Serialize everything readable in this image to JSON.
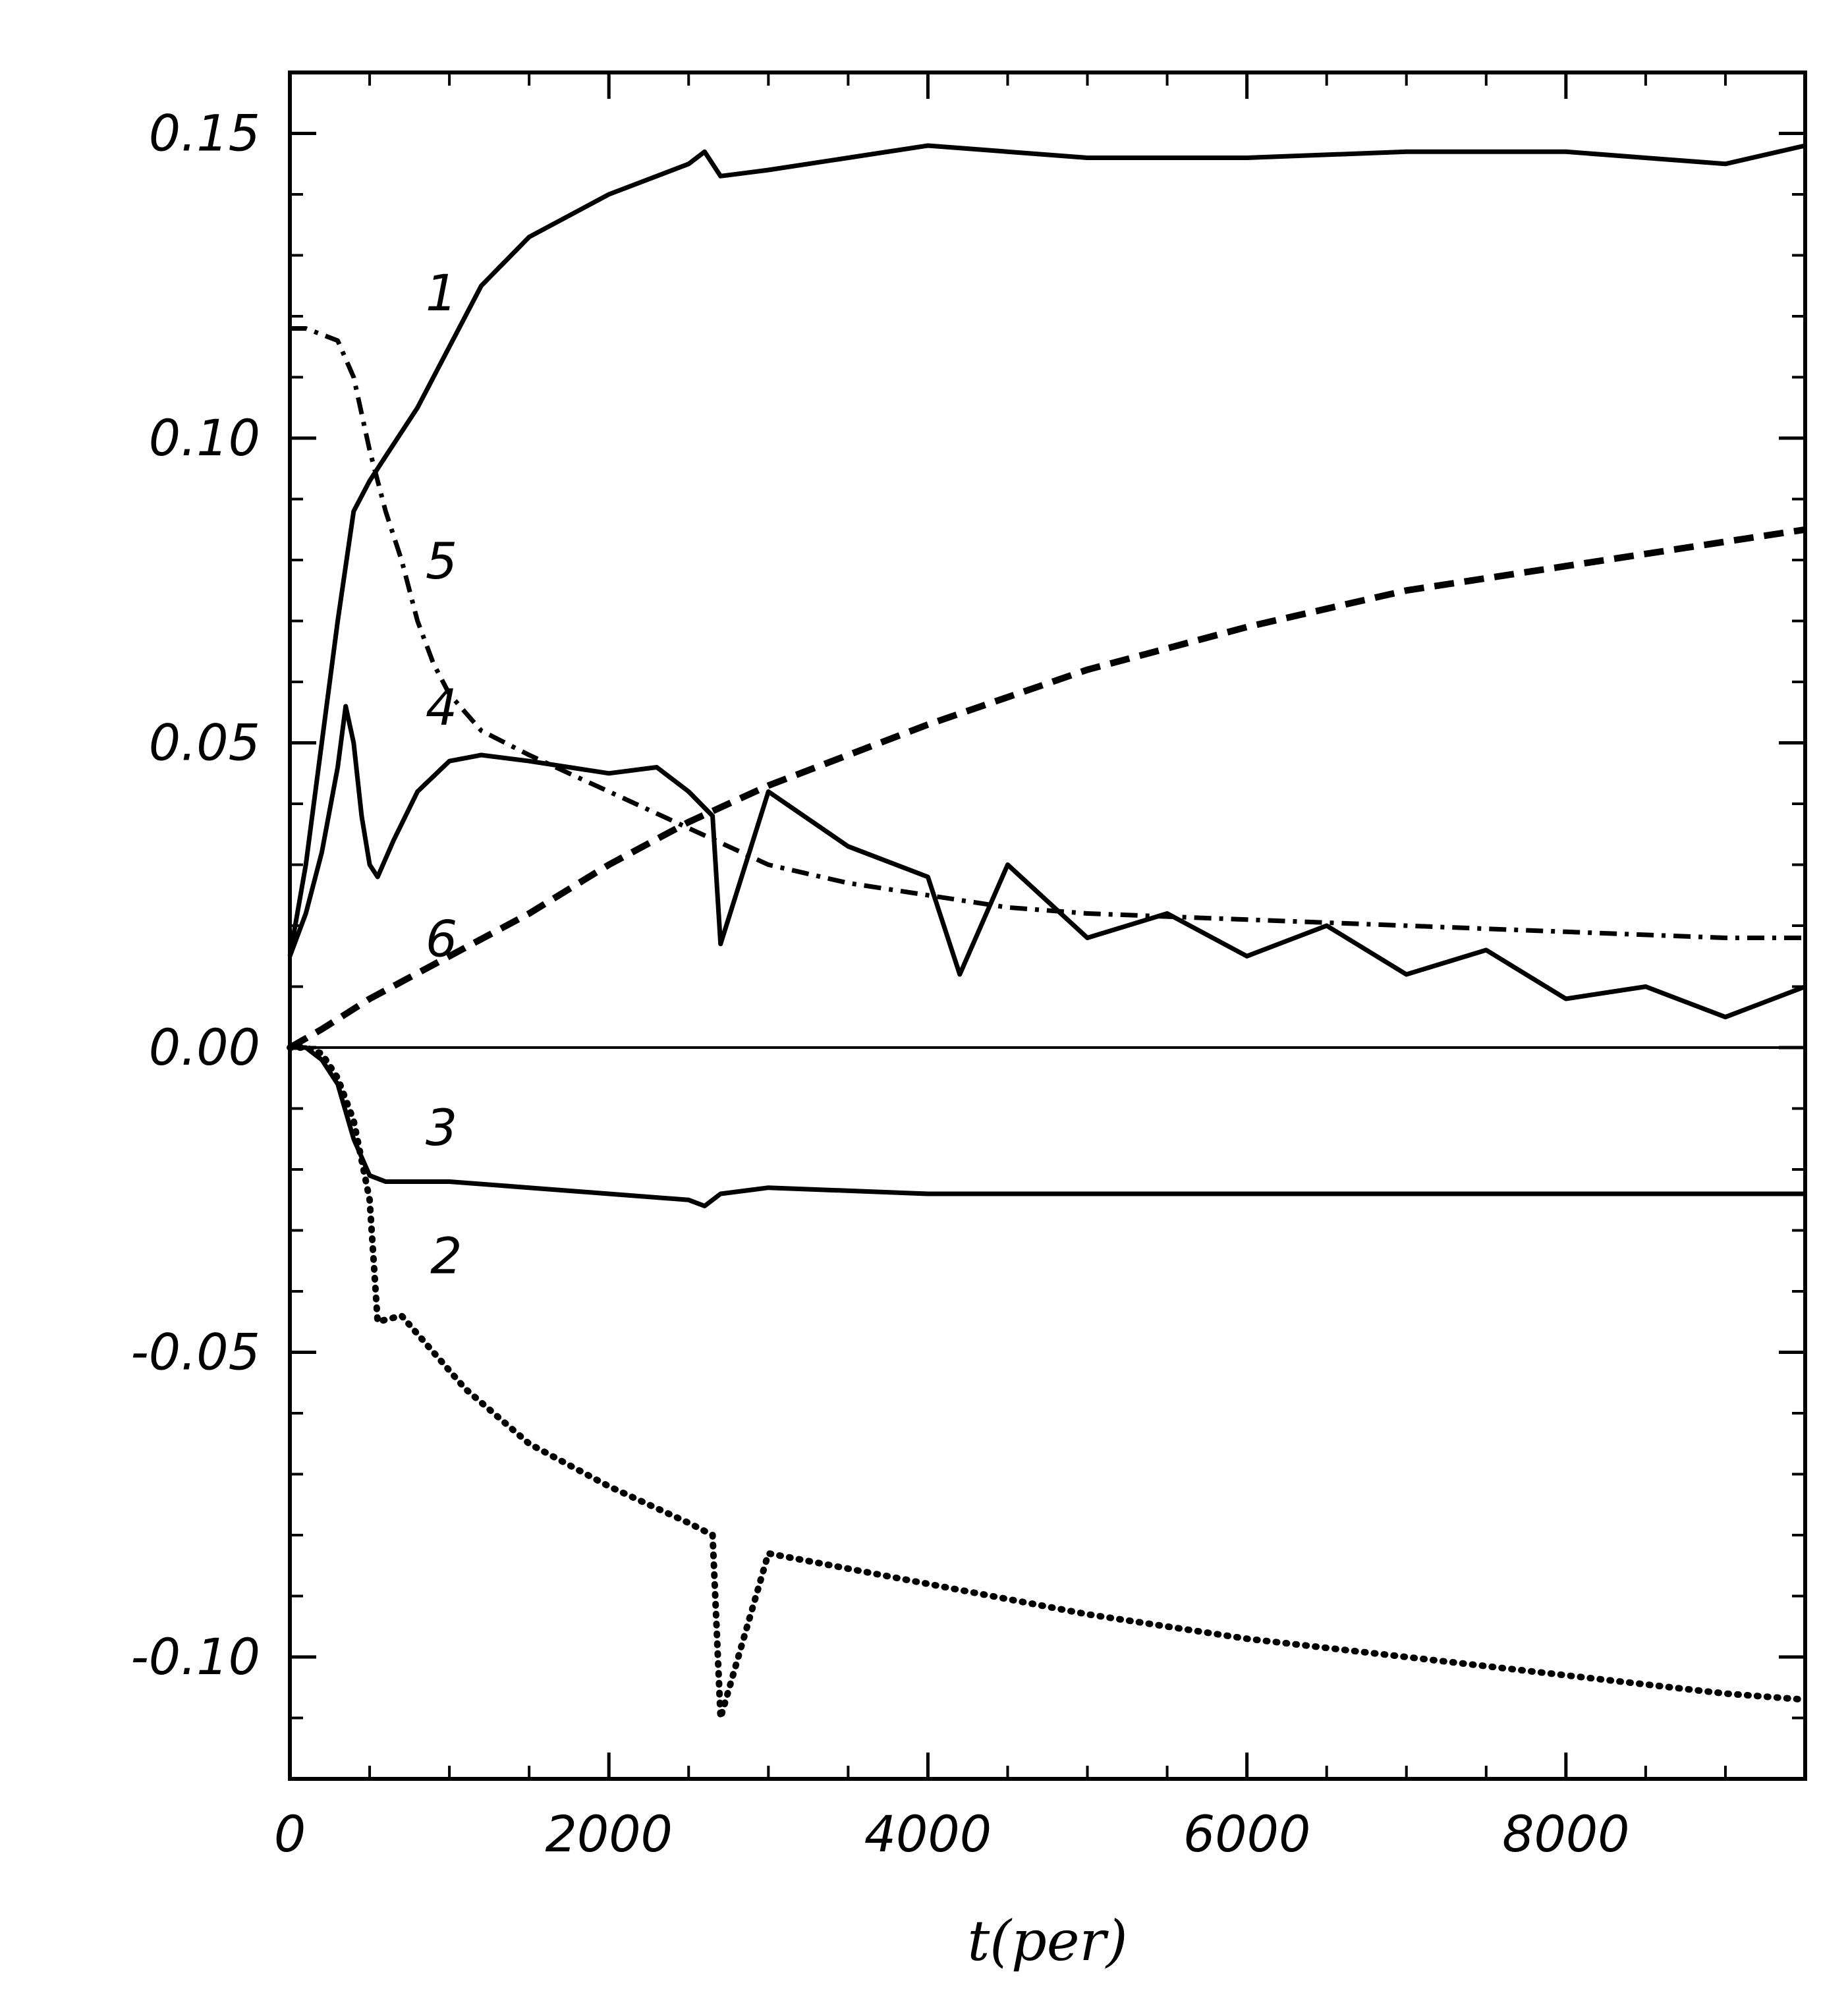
{
  "chart_data": {
    "type": "line",
    "title": "",
    "xlabel": "t(per)",
    "ylabel": "",
    "xlim": [
      0,
      9500
    ],
    "ylim": [
      -0.12,
      0.16
    ],
    "x_ticks": [
      0,
      2000,
      4000,
      6000,
      8000
    ],
    "x_tick_labels": [
      "0",
      "2000",
      "4000",
      "6000",
      "8000"
    ],
    "y_ticks": [
      -0.1,
      -0.05,
      0.0,
      0.05,
      0.1,
      0.15
    ],
    "y_tick_labels": [
      "-0.10",
      "-0.05",
      "0.00",
      "0.05",
      "0.10",
      "0.15"
    ],
    "grid": false,
    "reference_line": {
      "y": 0.0
    },
    "series": [
      {
        "name": "1",
        "style": "solid",
        "x": [
          0,
          100,
          200,
          300,
          400,
          500,
          600,
          800,
          1000,
          1200,
          1500,
          2000,
          2500,
          2600,
          2700,
          3000,
          3500,
          4000,
          5000,
          6000,
          7000,
          8000,
          9000,
          9500
        ],
        "y": [
          0.015,
          0.03,
          0.05,
          0.07,
          0.088,
          0.093,
          0.097,
          0.105,
          0.115,
          0.125,
          0.133,
          0.14,
          0.145,
          0.147,
          0.143,
          0.144,
          0.146,
          0.148,
          0.146,
          0.146,
          0.147,
          0.147,
          0.145,
          0.148
        ]
      },
      {
        "name": "2",
        "style": "dotted",
        "x": [
          0,
          100,
          200,
          300,
          400,
          500,
          550,
          700,
          900,
          1100,
          1500,
          2000,
          2500,
          2650,
          2700,
          3000,
          4000,
          5000,
          6000,
          7000,
          8000,
          9000,
          9500
        ],
        "y": [
          0.0,
          0.0,
          -0.001,
          -0.005,
          -0.012,
          -0.025,
          -0.045,
          -0.044,
          -0.05,
          -0.056,
          -0.065,
          -0.072,
          -0.078,
          -0.08,
          -0.11,
          -0.083,
          -0.088,
          -0.093,
          -0.097,
          -0.1,
          -0.103,
          -0.106,
          -0.107
        ]
      },
      {
        "name": "3",
        "style": "solid",
        "x": [
          0,
          100,
          200,
          300,
          400,
          500,
          600,
          1000,
          1500,
          2000,
          2500,
          2600,
          2700,
          3000,
          4000,
          5000,
          6000,
          7000,
          8000,
          9000,
          9500
        ],
        "y": [
          0.0,
          0.0,
          -0.002,
          -0.006,
          -0.015,
          -0.021,
          -0.022,
          -0.022,
          -0.023,
          -0.024,
          -0.025,
          -0.026,
          -0.024,
          -0.023,
          -0.024,
          -0.024,
          -0.024,
          -0.024,
          -0.024,
          -0.024,
          -0.024
        ]
      },
      {
        "name": "4",
        "style": "solid",
        "x": [
          0,
          100,
          200,
          300,
          350,
          400,
          450,
          500,
          550,
          650,
          800,
          1000,
          1200,
          1500,
          2000,
          2300,
          2500,
          2650,
          2700,
          3000,
          3500,
          4000,
          4200,
          4500,
          5000,
          5500,
          6000,
          6500,
          7000,
          7500,
          8000,
          8500,
          9000,
          9500
        ],
        "y": [
          0.015,
          0.022,
          0.032,
          0.046,
          0.056,
          0.05,
          0.038,
          0.03,
          0.028,
          0.034,
          0.042,
          0.047,
          0.048,
          0.047,
          0.045,
          0.046,
          0.042,
          0.038,
          0.017,
          0.042,
          0.033,
          0.028,
          0.012,
          0.03,
          0.018,
          0.022,
          0.015,
          0.02,
          0.012,
          0.016,
          0.008,
          0.01,
          0.005,
          0.01
        ]
      },
      {
        "name": "5",
        "style": "dash-dot",
        "x": [
          0,
          100,
          200,
          300,
          400,
          500,
          600,
          700,
          800,
          900,
          1000,
          1200,
          1500,
          2000,
          2500,
          3000,
          3500,
          4000,
          4500,
          5000,
          6000,
          7000,
          8000,
          9000,
          9500
        ],
        "y": [
          0.118,
          0.118,
          0.117,
          0.116,
          0.11,
          0.098,
          0.088,
          0.08,
          0.07,
          0.063,
          0.058,
          0.052,
          0.048,
          0.042,
          0.036,
          0.03,
          0.027,
          0.025,
          0.023,
          0.022,
          0.021,
          0.02,
          0.019,
          0.018,
          0.018
        ]
      },
      {
        "name": "6",
        "style": "dashed",
        "x": [
          0,
          200,
          500,
          1000,
          1500,
          2000,
          2500,
          3000,
          3500,
          4000,
          5000,
          6000,
          7000,
          8000,
          9000,
          9500
        ],
        "y": [
          0.0,
          0.003,
          0.008,
          0.015,
          0.022,
          0.03,
          0.037,
          0.043,
          0.048,
          0.053,
          0.062,
          0.069,
          0.075,
          0.079,
          0.083,
          0.085
        ]
      }
    ],
    "annotations": [
      {
        "text": "1",
        "x": 950,
        "y": 0.121
      },
      {
        "text": "2",
        "x": 980,
        "y": -0.037
      },
      {
        "text": "3",
        "x": 950,
        "y": -0.016
      },
      {
        "text": "4",
        "x": 950,
        "y": 0.053
      },
      {
        "text": "5",
        "x": 950,
        "y": 0.077
      },
      {
        "text": "6",
        "x": 950,
        "y": 0.015
      }
    ]
  }
}
